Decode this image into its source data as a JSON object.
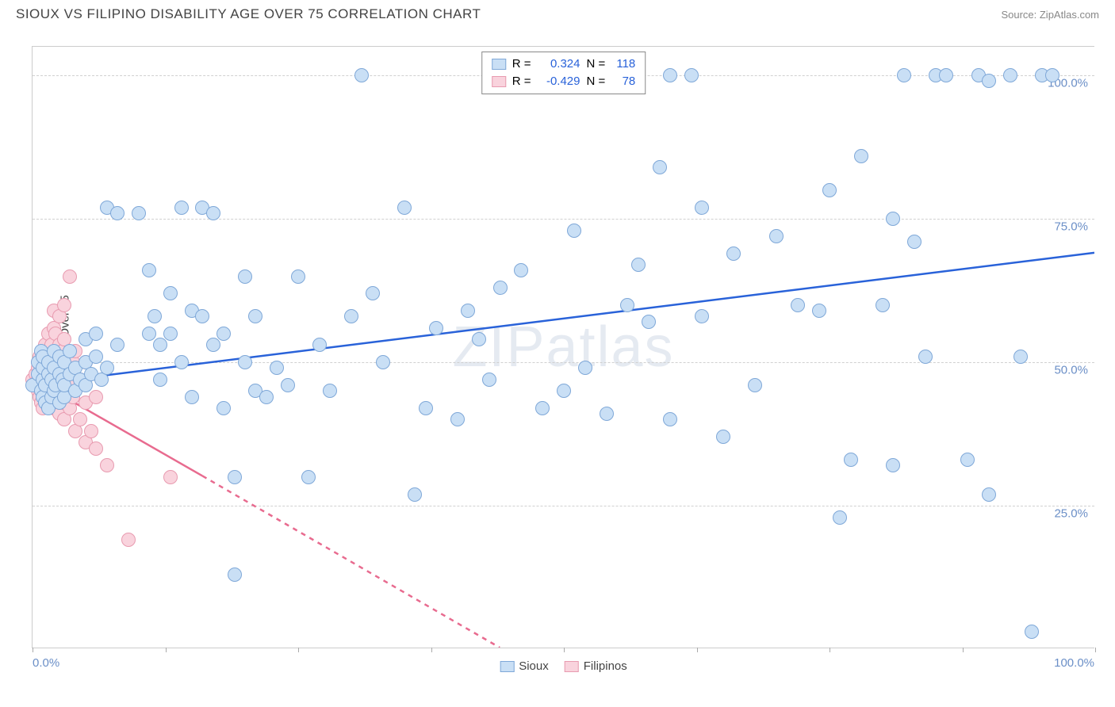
{
  "title": "SIOUX VS FILIPINO DISABILITY AGE OVER 75 CORRELATION CHART",
  "source": "Source: ZipAtlas.com",
  "y_axis_label": "Disability Age Over 75",
  "watermark": "ZIPatlas",
  "chart": {
    "type": "scatter",
    "background_color": "#ffffff",
    "grid_color": "#d0d0d0",
    "border_color": "#cccccc",
    "xlim": [
      0,
      100
    ],
    "ylim": [
      0,
      105
    ],
    "x_ticks": [
      0,
      12.5,
      25,
      37.5,
      50,
      62.5,
      75,
      87.5,
      100
    ],
    "x_tick_labels": {
      "0": "0.0%",
      "100": "100.0%"
    },
    "y_grid": [
      25,
      50,
      75,
      100
    ],
    "y_tick_labels": {
      "25": "25.0%",
      "50": "50.0%",
      "75": "75.0%",
      "100": "100.0%"
    },
    "axis_label_color": "#6b8fc7",
    "axis_label_fontsize": 15,
    "marker_radius": 9,
    "marker_stroke_width": 1.5,
    "line_width": 2.5
  },
  "series": {
    "sioux": {
      "label": "Sioux",
      "fill": "#c9dff5",
      "stroke": "#7fa8d8",
      "line_color": "#2962d9",
      "R": "0.324",
      "N": "118",
      "trend": {
        "x1": 0,
        "y1": 46,
        "x2": 100,
        "y2": 69
      },
      "points": [
        [
          0,
          46
        ],
        [
          0.5,
          48
        ],
        [
          0.5,
          50
        ],
        [
          0.8,
          45
        ],
        [
          0.8,
          52
        ],
        [
          1,
          44
        ],
        [
          1,
          47
        ],
        [
          1,
          49
        ],
        [
          1,
          51
        ],
        [
          1.2,
          43
        ],
        [
          1.2,
          46
        ],
        [
          1.5,
          42
        ],
        [
          1.5,
          48
        ],
        [
          1.5,
          50
        ],
        [
          1.8,
          44
        ],
        [
          1.8,
          47
        ],
        [
          2,
          45
        ],
        [
          2,
          49
        ],
        [
          2,
          52
        ],
        [
          2.2,
          46
        ],
        [
          2.5,
          43
        ],
        [
          2.5,
          48
        ],
        [
          2.5,
          51
        ],
        [
          2.8,
          47
        ],
        [
          3,
          44
        ],
        [
          3,
          46
        ],
        [
          3,
          50
        ],
        [
          3.5,
          48
        ],
        [
          3.5,
          52
        ],
        [
          4,
          45
        ],
        [
          4,
          49
        ],
        [
          4.5,
          47
        ],
        [
          5,
          46
        ],
        [
          5,
          50
        ],
        [
          5,
          54
        ],
        [
          5.5,
          48
        ],
        [
          6,
          51
        ],
        [
          6,
          55
        ],
        [
          6.5,
          47
        ],
        [
          7,
          49
        ],
        [
          7,
          77
        ],
        [
          8,
          53
        ],
        [
          8,
          76
        ],
        [
          10,
          76
        ],
        [
          11,
          55
        ],
        [
          11,
          66
        ],
        [
          11.5,
          58
        ],
        [
          12,
          47
        ],
        [
          12,
          53
        ],
        [
          13,
          55
        ],
        [
          13,
          62
        ],
        [
          14,
          50
        ],
        [
          14,
          77
        ],
        [
          15,
          44
        ],
        [
          15,
          59
        ],
        [
          16,
          58
        ],
        [
          16,
          77
        ],
        [
          17,
          53
        ],
        [
          17,
          76
        ],
        [
          18,
          42
        ],
        [
          18,
          55
        ],
        [
          19,
          30
        ],
        [
          19,
          13
        ],
        [
          20,
          50
        ],
        [
          20,
          65
        ],
        [
          21,
          45
        ],
        [
          21,
          58
        ],
        [
          22,
          44
        ],
        [
          23,
          49
        ],
        [
          24,
          46
        ],
        [
          25,
          65
        ],
        [
          26,
          30
        ],
        [
          27,
          53
        ],
        [
          28,
          45
        ],
        [
          30,
          58
        ],
        [
          31,
          100
        ],
        [
          32,
          62
        ],
        [
          33,
          50
        ],
        [
          35,
          77
        ],
        [
          36,
          27
        ],
        [
          37,
          42
        ],
        [
          38,
          56
        ],
        [
          40,
          40
        ],
        [
          41,
          59
        ],
        [
          42,
          54
        ],
        [
          43,
          47
        ],
        [
          44,
          63
        ],
        [
          45,
          100
        ],
        [
          46,
          66
        ],
        [
          48,
          42
        ],
        [
          50,
          45
        ],
        [
          51,
          73
        ],
        [
          52,
          49
        ],
        [
          54,
          41
        ],
        [
          55,
          100
        ],
        [
          56,
          60
        ],
        [
          57,
          67
        ],
        [
          58,
          57
        ],
        [
          59,
          84
        ],
        [
          60,
          40
        ],
        [
          60,
          100
        ],
        [
          62,
          100
        ],
        [
          63,
          58
        ],
        [
          63,
          77
        ],
        [
          65,
          37
        ],
        [
          66,
          69
        ],
        [
          68,
          46
        ],
        [
          70,
          72
        ],
        [
          72,
          60
        ],
        [
          74,
          59
        ],
        [
          75,
          80
        ],
        [
          76,
          23
        ],
        [
          77,
          33
        ],
        [
          78,
          86
        ],
        [
          80,
          60
        ],
        [
          81,
          32
        ],
        [
          81,
          75
        ],
        [
          82,
          100
        ],
        [
          83,
          71
        ],
        [
          84,
          51
        ],
        [
          85,
          100
        ],
        [
          86,
          100
        ],
        [
          88,
          33
        ],
        [
          89,
          100
        ],
        [
          90,
          27
        ],
        [
          90,
          99
        ],
        [
          92,
          100
        ],
        [
          93,
          51
        ],
        [
          94,
          3
        ],
        [
          95,
          100
        ],
        [
          96,
          100
        ]
      ]
    },
    "filipinos": {
      "label": "Filipinos",
      "fill": "#f9d3dd",
      "stroke": "#e89bb0",
      "line_color": "#e86b8f",
      "R": "-0.429",
      "N": "78",
      "trend_solid": {
        "x1": 0,
        "y1": 47,
        "x2": 16,
        "y2": 30
      },
      "trend_dashed": {
        "x1": 16,
        "y1": 30,
        "x2": 44,
        "y2": 0
      },
      "points": [
        [
          0,
          47
        ],
        [
          0.3,
          46
        ],
        [
          0.3,
          48
        ],
        [
          0.5,
          45
        ],
        [
          0.5,
          47
        ],
        [
          0.5,
          49
        ],
        [
          0.5,
          50
        ],
        [
          0.7,
          44
        ],
        [
          0.7,
          46
        ],
        [
          0.7,
          48
        ],
        [
          0.7,
          51
        ],
        [
          0.8,
          43
        ],
        [
          0.8,
          47
        ],
        [
          0.8,
          50
        ],
        [
          1,
          42
        ],
        [
          1,
          45
        ],
        [
          1,
          47
        ],
        [
          1,
          49
        ],
        [
          1,
          52
        ],
        [
          1.2,
          44
        ],
        [
          1.2,
          46
        ],
        [
          1.2,
          48
        ],
        [
          1.2,
          50
        ],
        [
          1.2,
          53
        ],
        [
          1.4,
          43
        ],
        [
          1.4,
          47
        ],
        [
          1.4,
          51
        ],
        [
          1.5,
          45
        ],
        [
          1.5,
          48
        ],
        [
          1.5,
          52
        ],
        [
          1.5,
          55
        ],
        [
          1.7,
          44
        ],
        [
          1.7,
          46
        ],
        [
          1.7,
          49
        ],
        [
          1.8,
          47
        ],
        [
          1.8,
          50
        ],
        [
          1.8,
          53
        ],
        [
          2,
          42
        ],
        [
          2,
          45
        ],
        [
          2,
          48
        ],
        [
          2,
          51
        ],
        [
          2,
          56
        ],
        [
          2,
          59
        ],
        [
          2.2,
          44
        ],
        [
          2.2,
          46
        ],
        [
          2.2,
          49
        ],
        [
          2.2,
          55
        ],
        [
          2.5,
          41
        ],
        [
          2.5,
          47
        ],
        [
          2.5,
          50
        ],
        [
          2.5,
          53
        ],
        [
          2.5,
          58
        ],
        [
          2.8,
          43
        ],
        [
          2.8,
          48
        ],
        [
          2.8,
          52
        ],
        [
          3,
          40
        ],
        [
          3,
          45
        ],
        [
          3,
          49
        ],
        [
          3,
          54
        ],
        [
          3,
          60
        ],
        [
          3.2,
          46
        ],
        [
          3.2,
          51
        ],
        [
          3.5,
          42
        ],
        [
          3.5,
          48
        ],
        [
          3.5,
          65
        ],
        [
          3.8,
          44
        ],
        [
          3.8,
          50
        ],
        [
          4,
          38
        ],
        [
          4,
          46
        ],
        [
          4,
          52
        ],
        [
          4.5,
          40
        ],
        [
          4.5,
          47
        ],
        [
          5,
          36
        ],
        [
          5,
          43
        ],
        [
          5,
          50
        ],
        [
          5.5,
          38
        ],
        [
          6,
          35
        ],
        [
          6,
          44
        ],
        [
          7,
          32
        ],
        [
          9,
          19
        ],
        [
          13,
          30
        ]
      ]
    }
  },
  "legend_top": {
    "r_label": "R =",
    "n_label": "N ="
  }
}
